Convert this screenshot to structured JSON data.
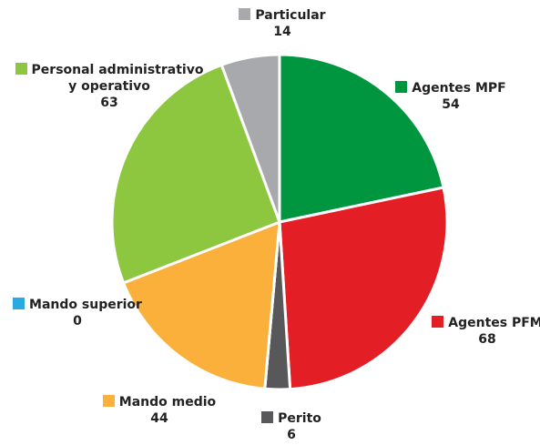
{
  "chart_data": {
    "type": "pie",
    "categories": [
      "Agentes MPF",
      "Agentes PFM",
      "Perito",
      "Mando superior",
      "Mando medio",
      "Personal administrativo y operativo",
      "Particular"
    ],
    "values": [
      54,
      68,
      6,
      0,
      44,
      63,
      14
    ],
    "colors": [
      "#009640",
      "#e31e24",
      "#58585a",
      "#29abe2",
      "#fbb03b",
      "#8dc63f",
      "#a7a9ac"
    ]
  }
}
